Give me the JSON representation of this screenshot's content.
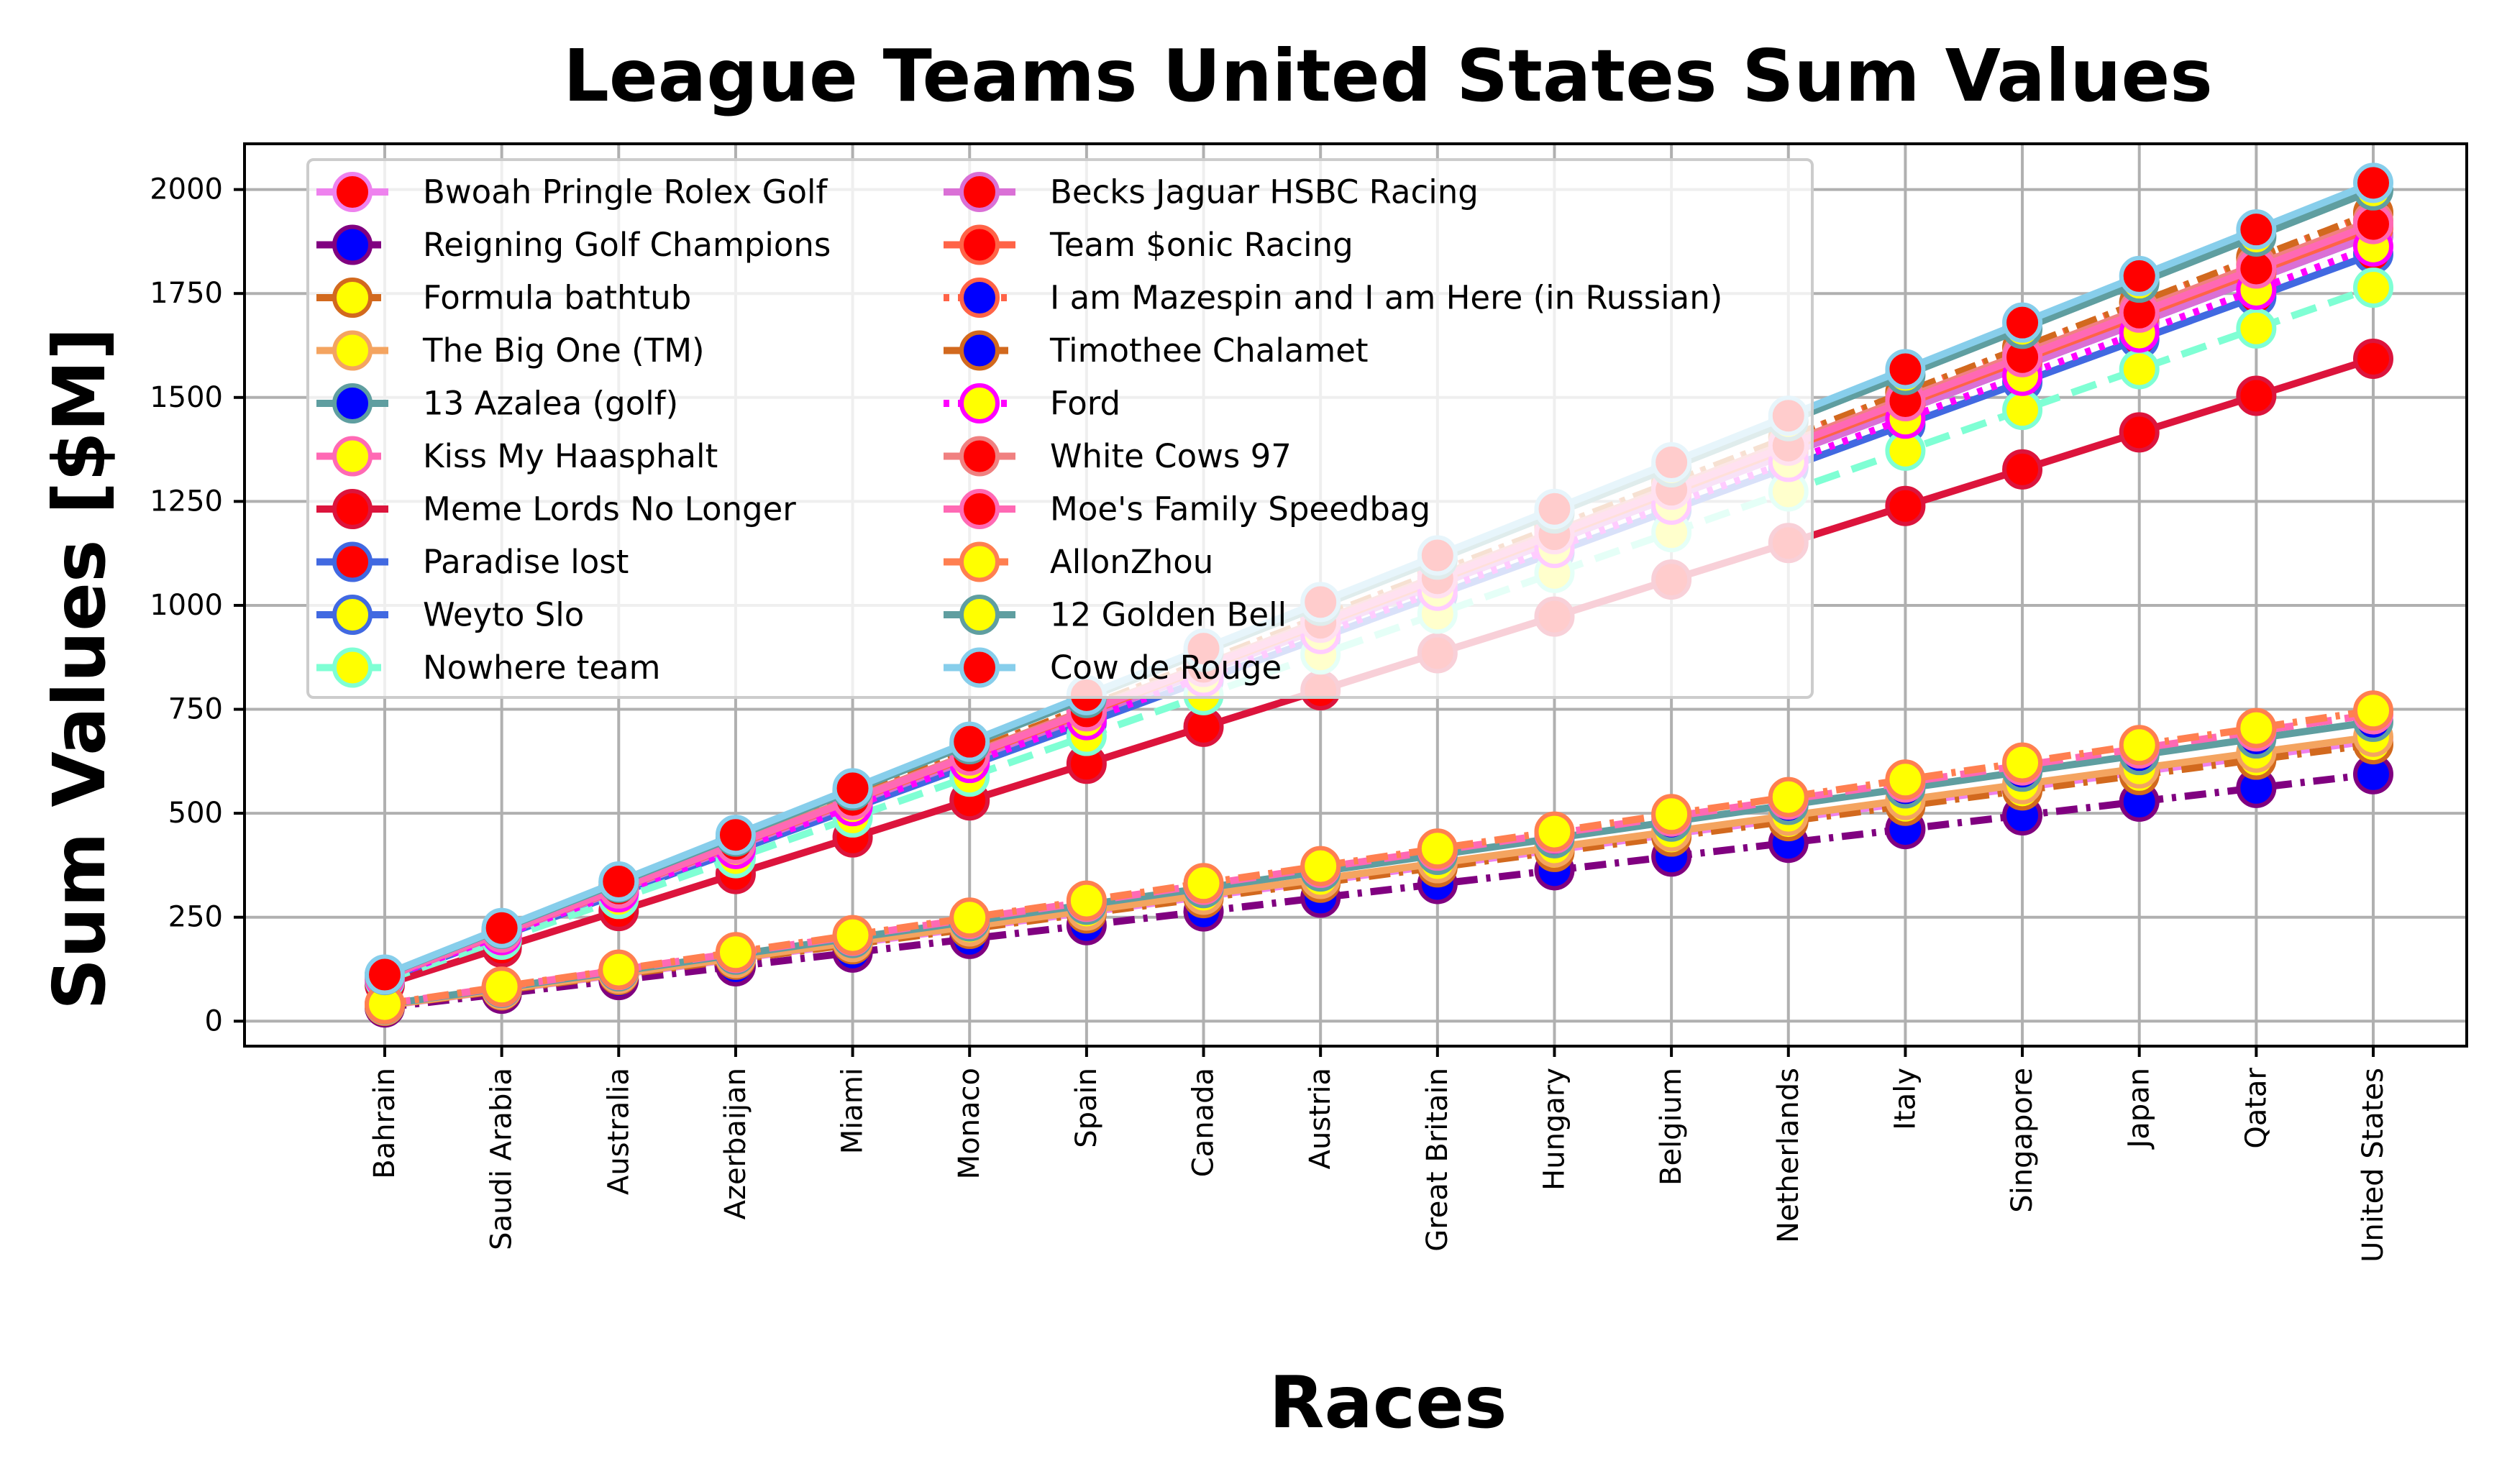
{
  "chart_data": {
    "type": "line",
    "title": "League Teams United States Sum Values",
    "xlabel": "Races",
    "ylabel": "Sum Values [$M]",
    "categories": [
      "Bahrain",
      "Saudi Arabia",
      "Australia",
      "Azerbaijan",
      "Miami",
      "Monaco",
      "Spain",
      "Canada",
      "Austria",
      "Great Britain",
      "Hungary",
      "Belgium",
      "Netherlands",
      "Italy",
      "Singapore",
      "Japan",
      "Qatar",
      "United States"
    ],
    "ylim": [
      -60,
      2110
    ],
    "yticks": [
      0,
      250,
      500,
      750,
      1000,
      1250,
      1500,
      1750,
      2000
    ],
    "grid": true,
    "legend_position": "top-left",
    "series": [
      {
        "name": "Bwoah Pringle Rolex Golf",
        "color": "#ee82ee",
        "marker": "#ff0000",
        "dash": "solid",
        "values": [
          37,
          75,
          112,
          150,
          187,
          225,
          262,
          300,
          337,
          375,
          412,
          450,
          487,
          525,
          562,
          600,
          637,
          675
        ]
      },
      {
        "name": "Reigning Golf Champions",
        "color": "#800080",
        "marker": "#0000ff",
        "dash": "dashdot",
        "values": [
          33,
          66,
          99,
          132,
          165,
          198,
          231,
          264,
          297,
          330,
          363,
          396,
          429,
          462,
          495,
          528,
          561,
          594
        ]
      },
      {
        "name": "Formula bathtub",
        "color": "#d2691e",
        "marker": "#ffff00",
        "dash": "dashdot",
        "values": [
          37,
          74,
          111,
          148,
          185,
          222,
          259,
          296,
          333,
          370,
          407,
          444,
          481,
          518,
          555,
          592,
          629,
          666
        ]
      },
      {
        "name": "The Big One (TM)",
        "color": "#f4a460",
        "marker": "#ffff00",
        "dash": "solid",
        "values": [
          38,
          76,
          114,
          152,
          190,
          228,
          266,
          304,
          342,
          380,
          418,
          456,
          494,
          532,
          570,
          608,
          646,
          684
        ]
      },
      {
        "name": "13 Azalea (golf)",
        "color": "#5f9ea0",
        "marker": "#0000ff",
        "dash": "solid",
        "values": [
          40,
          80,
          120,
          160,
          200,
          240,
          280,
          320,
          360,
          400,
          440,
          480,
          520,
          560,
          600,
          640,
          680,
          720
        ]
      },
      {
        "name": "Kiss My Haasphalt",
        "color": "#ff69b4",
        "marker": "#ffff00",
        "dash": "dashed",
        "values": [
          41,
          82,
          123,
          164,
          205,
          246,
          287,
          328,
          369,
          410,
          451,
          492,
          533,
          574,
          615,
          656,
          697,
          738
        ]
      },
      {
        "name": "Meme Lords No Longer",
        "color": "#dc143c",
        "marker": "#ff0000",
        "dash": "solid",
        "values": [
          88,
          177,
          265,
          354,
          442,
          531,
          619,
          708,
          796,
          885,
          973,
          1062,
          1150,
          1239,
          1327,
          1416,
          1504,
          1593
        ]
      },
      {
        "name": "Paradise lost",
        "color": "#4169e1",
        "marker": "#ff0000",
        "dash": "solid",
        "values": [
          102,
          205,
          307,
          410,
          512,
          615,
          717,
          820,
          922,
          1025,
          1127,
          1230,
          1332,
          1435,
          1537,
          1640,
          1742,
          1845
        ]
      },
      {
        "name": "Weyto Slo",
        "color": "#4169e1",
        "marker": "#ffff00",
        "dash": "solid",
        "values": [
          105,
          210,
          315,
          420,
          525,
          630,
          735,
          840,
          945,
          1050,
          1155,
          1260,
          1365,
          1470,
          1575,
          1680,
          1785,
          1890
        ]
      },
      {
        "name": "Nowhere team",
        "color": "#7fffd4",
        "marker": "#ffff00",
        "dash": "dashed",
        "values": [
          98,
          196,
          294,
          392,
          490,
          588,
          686,
          784,
          882,
          980,
          1078,
          1176,
          1274,
          1372,
          1470,
          1568,
          1666,
          1764
        ]
      },
      {
        "name": "Becks Jaguar HSBC Racing",
        "color": "#da70d6",
        "marker": "#ff0000",
        "dash": "solid",
        "values": [
          105,
          210,
          315,
          420,
          525,
          630,
          735,
          840,
          945,
          1050,
          1155,
          1260,
          1365,
          1470,
          1575,
          1680,
          1785,
          1890
        ]
      },
      {
        "name": "Team $onic Racing",
        "color": "#ff6347",
        "marker": "#ff0000",
        "dash": "solid",
        "values": [
          106,
          212,
          318,
          424,
          530,
          636,
          742,
          848,
          954,
          1060,
          1166,
          1272,
          1378,
          1484,
          1590,
          1696,
          1802,
          1908
        ]
      },
      {
        "name": "I am Mazespin and I am Here (in Russian)",
        "color": "#ff6347",
        "marker": "#0000ff",
        "dash": "dotted",
        "values": [
          108,
          216,
          324,
          432,
          540,
          648,
          756,
          864,
          972,
          1080,
          1188,
          1296,
          1404,
          1512,
          1620,
          1728,
          1836,
          1944
        ]
      },
      {
        "name": "Timothee Chalamet",
        "color": "#d2691e",
        "marker": "#0000ff",
        "dash": "dashdot",
        "values": [
          108,
          216,
          324,
          432,
          540,
          648,
          756,
          864,
          972,
          1080,
          1188,
          1296,
          1404,
          1512,
          1620,
          1728,
          1836,
          1944
        ]
      },
      {
        "name": "Ford",
        "color": "#ff00ff",
        "marker": "#ffff00",
        "dash": "dotted",
        "values": [
          103,
          207,
          310,
          414,
          517,
          621,
          724,
          828,
          931,
          1035,
          1138,
          1242,
          1345,
          1449,
          1552,
          1656,
          1759,
          1863
        ]
      },
      {
        "name": "White Cows 97",
        "color": "#f08080",
        "marker": "#ff0000",
        "dash": "solid",
        "values": [
          107,
          214,
          321,
          428,
          535,
          642,
          749,
          856,
          963,
          1070,
          1177,
          1284,
          1391,
          1498,
          1605,
          1712,
          1819,
          1926
        ]
      },
      {
        "name": "Moe's Family Speedbag",
        "color": "#ff69b4",
        "marker": "#ff0000",
        "dash": "solid",
        "values": [
          106,
          213,
          319,
          426,
          532,
          639,
          745,
          852,
          958,
          1065,
          1171,
          1278,
          1384,
          1491,
          1597,
          1704,
          1810,
          1917
        ]
      },
      {
        "name": "AllonZhou",
        "color": "#ff7f50",
        "marker": "#ffff00",
        "dash": "dashdot",
        "values": [
          41,
          83,
          124,
          166,
          207,
          249,
          290,
          332,
          373,
          415,
          456,
          498,
          539,
          581,
          622,
          664,
          705,
          747
        ]
      },
      {
        "name": "12 Golden Bell",
        "color": "#5f9ea0",
        "marker": "#ffff00",
        "dash": "solid",
        "values": [
          111,
          222,
          333,
          444,
          555,
          666,
          777,
          888,
          999,
          1110,
          1221,
          1332,
          1443,
          1554,
          1665,
          1776,
          1887,
          1998
        ]
      },
      {
        "name": "Cow de Rouge",
        "color": "#87ceeb",
        "marker": "#ff0000",
        "dash": "solid",
        "values": [
          112,
          224,
          336,
          448,
          560,
          672,
          784,
          896,
          1008,
          1120,
          1232,
          1344,
          1456,
          1568,
          1680,
          1792,
          1904,
          2016
        ]
      }
    ]
  }
}
